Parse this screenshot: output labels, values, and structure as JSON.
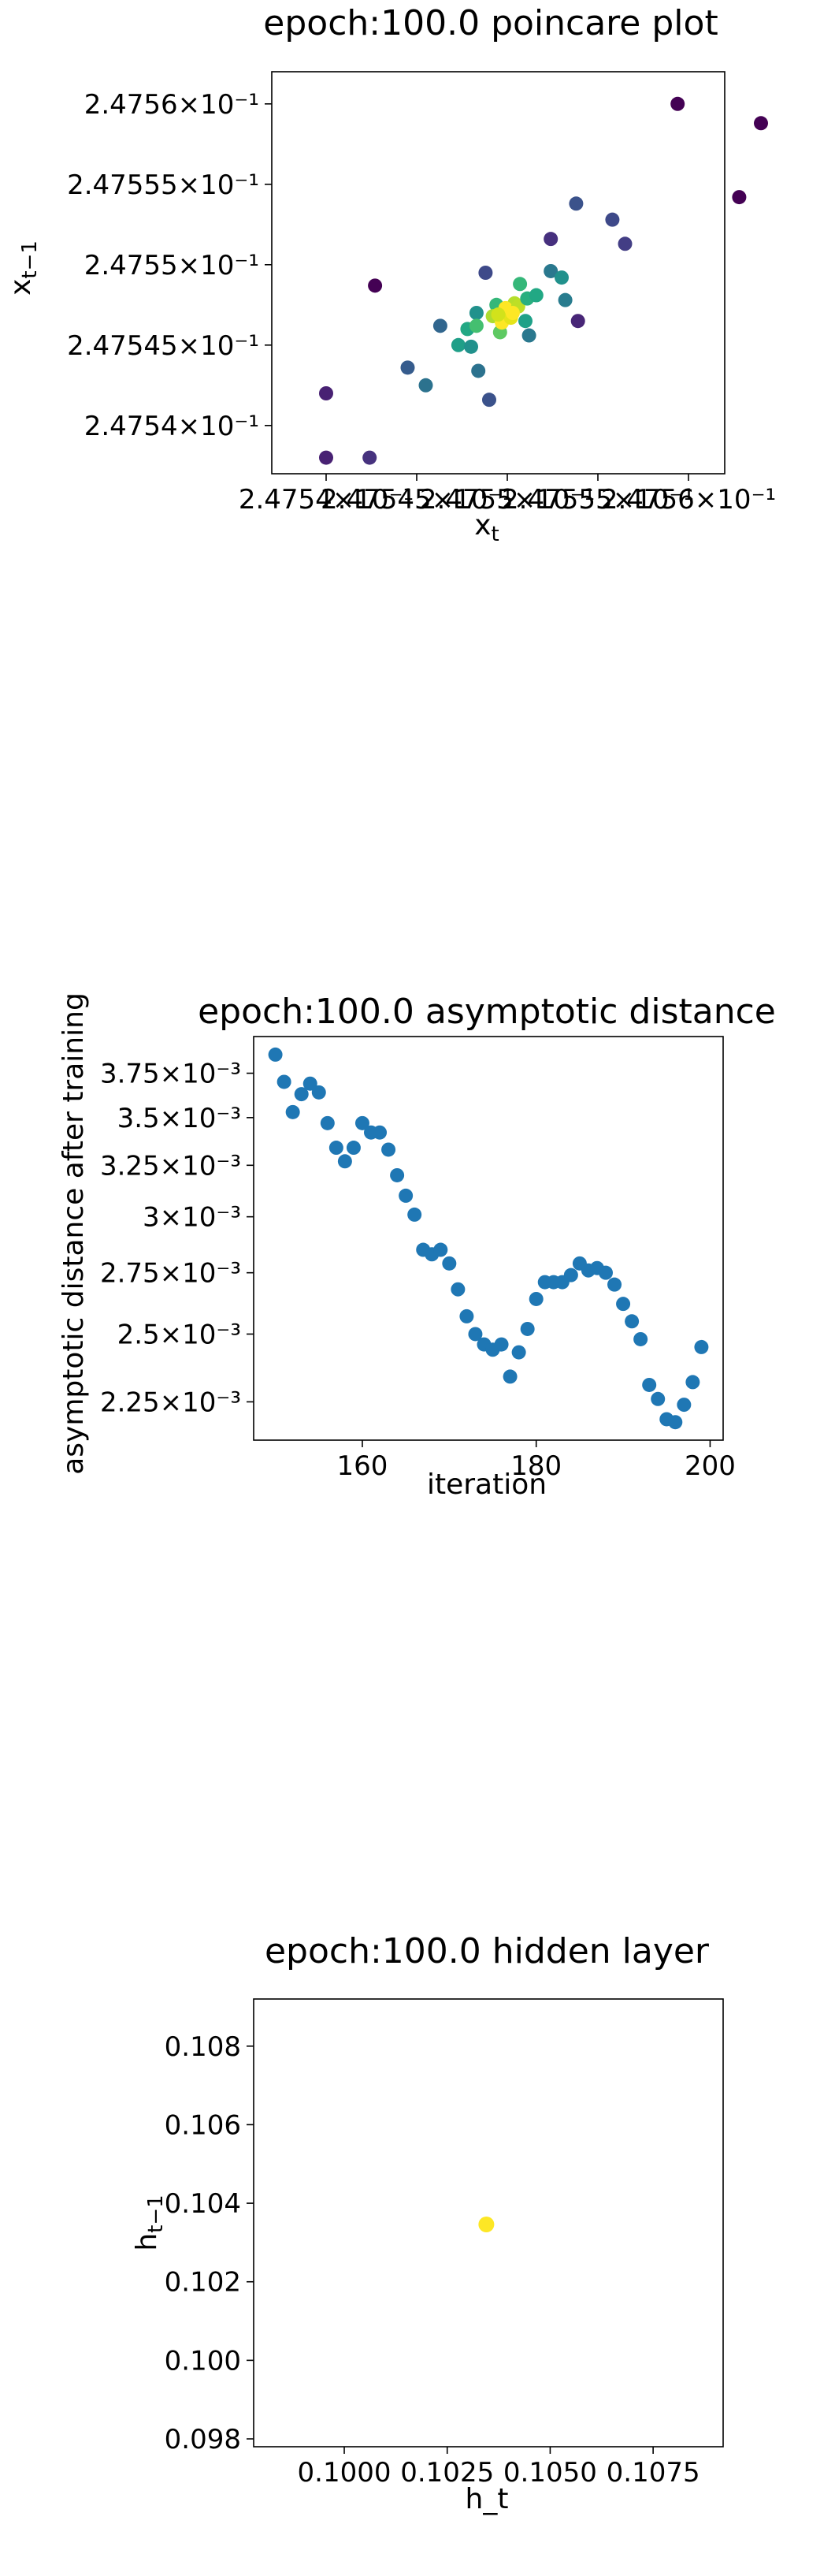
{
  "chart_data": [
    {
      "type": "scatter",
      "title": "epoch:100.0 poincare plot",
      "xlabel": "x",
      "xlabel_sub": "t",
      "ylabel": "x",
      "ylabel_sub": "t−1",
      "xlim": [
        0.247537,
        0.247562
      ],
      "ylim": [
        0.247537,
        0.247562
      ],
      "xticks": [
        {
          "value": 0.24754,
          "label": "2.4754×10⁻¹"
        },
        {
          "value": 0.247545,
          "label": "2.47545×10⁻¹"
        },
        {
          "value": 0.24755,
          "label": "2.4755×10⁻¹"
        },
        {
          "value": 0.247555,
          "label": "2.47555×10⁻¹"
        },
        {
          "value": 0.24756,
          "label": "2.4756×10⁻¹"
        }
      ],
      "yticks": [
        {
          "value": 0.24754,
          "label": "2.4754×10⁻¹"
        },
        {
          "value": 0.247545,
          "label": "2.47545×10⁻¹"
        },
        {
          "value": 0.24755,
          "label": "2.4755×10⁻¹"
        },
        {
          "value": 0.247555,
          "label": "2.47555×10⁻¹"
        },
        {
          "value": 0.24756,
          "label": "2.4756×10⁻¹"
        }
      ],
      "points": [
        {
          "x": 0.24754,
          "y": 0.247538,
          "c": "#482173"
        },
        {
          "x": 0.24754,
          "y": 0.247542,
          "c": "#482173"
        },
        {
          "x": 0.2475424,
          "y": 0.247538,
          "c": "#46327e"
        },
        {
          "x": 0.2475445,
          "y": 0.2475436,
          "c": "#365c8d"
        },
        {
          "x": 0.2475455,
          "y": 0.2475425,
          "c": "#2c728e"
        },
        {
          "x": 0.2475427,
          "y": 0.2475487,
          "c": "#440154"
        },
        {
          "x": 0.2475463,
          "y": 0.2475462,
          "c": "#31668e"
        },
        {
          "x": 0.2475473,
          "y": 0.247545,
          "c": "#1f9f88"
        },
        {
          "x": 0.247548,
          "y": 0.2475449,
          "c": "#21918c"
        },
        {
          "x": 0.2475484,
          "y": 0.2475434,
          "c": "#2c728e"
        },
        {
          "x": 0.247549,
          "y": 0.2475416,
          "c": "#3b528b"
        },
        {
          "x": 0.2475478,
          "y": 0.247546,
          "c": "#22a884"
        },
        {
          "x": 0.2475483,
          "y": 0.247547,
          "c": "#21918c"
        },
        {
          "x": 0.2475488,
          "y": 0.2475495,
          "c": "#3e4989"
        },
        {
          "x": 0.2475494,
          "y": 0.2475475,
          "c": "#35b779"
        },
        {
          "x": 0.2475483,
          "y": 0.2475462,
          "c": "#44bf70"
        },
        {
          "x": 0.2475496,
          "y": 0.2475458,
          "c": "#5ec962"
        },
        {
          "x": 0.2475492,
          "y": 0.2475468,
          "c": "#addc30"
        },
        {
          "x": 0.2475497,
          "y": 0.2475464,
          "c": "#fde725"
        },
        {
          "x": 0.24755,
          "y": 0.2475472,
          "c": "#d8e219"
        },
        {
          "x": 0.2475504,
          "y": 0.2475476,
          "c": "#b5de2b"
        },
        {
          "x": 0.2475499,
          "y": 0.2475473,
          "c": "#fde725"
        },
        {
          "x": 0.2475502,
          "y": 0.2475467,
          "c": "#e5e419"
        },
        {
          "x": 0.2475506,
          "y": 0.2475474,
          "c": "#bddf26"
        },
        {
          "x": 0.2475495,
          "y": 0.2475469,
          "c": "#d2e21b"
        },
        {
          "x": 0.2475503,
          "y": 0.247547,
          "c": "#fde725"
        },
        {
          "x": 0.2475507,
          "y": 0.2475488,
          "c": "#35b779"
        },
        {
          "x": 0.2475511,
          "y": 0.2475479,
          "c": "#29af7f"
        },
        {
          "x": 0.2475516,
          "y": 0.2475481,
          "c": "#22a884"
        },
        {
          "x": 0.247551,
          "y": 0.2475465,
          "c": "#1fa188"
        },
        {
          "x": 0.2475512,
          "y": 0.2475456,
          "c": "#2a788e"
        },
        {
          "x": 0.2475524,
          "y": 0.2475496,
          "c": "#2a788e"
        },
        {
          "x": 0.247553,
          "y": 0.2475492,
          "c": "#21918c"
        },
        {
          "x": 0.2475532,
          "y": 0.2475478,
          "c": "#287c8e"
        },
        {
          "x": 0.2475524,
          "y": 0.2475516,
          "c": "#46307e"
        },
        {
          "x": 0.2475538,
          "y": 0.2475538,
          "c": "#3b528b"
        },
        {
          "x": 0.2475539,
          "y": 0.2475465,
          "c": "#482677"
        },
        {
          "x": 0.2475558,
          "y": 0.2475528,
          "c": "#3e4989"
        },
        {
          "x": 0.2475565,
          "y": 0.2475513,
          "c": "#433e85"
        },
        {
          "x": 0.2475594,
          "y": 0.24756,
          "c": "#440154"
        },
        {
          "x": 0.2475628,
          "y": 0.2475542,
          "c": "#440154"
        },
        {
          "x": 0.247564,
          "y": 0.2475588,
          "c": "#440154"
        }
      ]
    },
    {
      "type": "scatter",
      "title": "epoch:100.0 asymptotic distance",
      "xlabel": "iteration",
      "ylabel": "asymptotic distance after training",
      "yscale": "log",
      "color": "#1f77b4",
      "xlim": [
        147.5,
        201.5
      ],
      "ylim": [
        0.00212,
        0.00397
      ],
      "xticks": [
        {
          "value": 160,
          "label": "160"
        },
        {
          "value": 180,
          "label": "180"
        },
        {
          "value": 200,
          "label": "200"
        }
      ],
      "yticks": [
        {
          "value": 0.00225,
          "label": "2.25×10⁻³"
        },
        {
          "value": 0.0025,
          "label": "2.5×10⁻³"
        },
        {
          "value": 0.00275,
          "label": "2.75×10⁻³"
        },
        {
          "value": 0.003,
          "label": "3×10⁻³"
        },
        {
          "value": 0.00325,
          "label": "3.25×10⁻³"
        },
        {
          "value": 0.0035,
          "label": "3.5×10⁻³"
        },
        {
          "value": 0.00375,
          "label": "3.75×10⁻³"
        }
      ],
      "x": [
        150,
        151,
        152,
        153,
        154,
        155,
        156,
        157,
        158,
        159,
        160,
        161,
        162,
        163,
        164,
        165,
        166,
        167,
        168,
        169,
        170,
        171,
        172,
        173,
        174,
        175,
        176,
        177,
        178,
        179,
        180,
        181,
        182,
        183,
        184,
        185,
        186,
        187,
        188,
        189,
        190,
        191,
        192,
        193,
        194,
        195,
        196,
        197,
        198,
        199
      ],
      "y": [
        0.00386,
        0.0037,
        0.00353,
        0.00363,
        0.00369,
        0.00364,
        0.00347,
        0.00334,
        0.00327,
        0.00334,
        0.00347,
        0.00342,
        0.00342,
        0.00333,
        0.0032,
        0.0031,
        0.00301,
        0.00285,
        0.00283,
        0.00285,
        0.00279,
        0.00268,
        0.00257,
        0.0025,
        0.00246,
        0.00244,
        0.00246,
        0.00234,
        0.00243,
        0.00252,
        0.00264,
        0.00271,
        0.00271,
        0.00271,
        0.00274,
        0.00279,
        0.00276,
        0.00277,
        0.00275,
        0.0027,
        0.00262,
        0.00255,
        0.00248,
        0.00231,
        0.00226,
        0.00219,
        0.00218,
        0.00224,
        0.00232,
        0.00245
      ]
    },
    {
      "type": "scatter",
      "title": "epoch:100.0 hidden layer",
      "xlabel": "h_t",
      "ylabel": "h",
      "ylabel_sub": "t−1",
      "xlim": [
        0.0978,
        0.1092
      ],
      "ylim": [
        0.0978,
        0.1092
      ],
      "xticks": [
        {
          "value": 0.1,
          "label": "0.1000"
        },
        {
          "value": 0.1025,
          "label": "0.1025"
        },
        {
          "value": 0.105,
          "label": "0.1050"
        },
        {
          "value": 0.1075,
          "label": "0.1075"
        }
      ],
      "yticks": [
        {
          "value": 0.098,
          "label": "0.098"
        },
        {
          "value": 0.1,
          "label": "0.100"
        },
        {
          "value": 0.102,
          "label": "0.102"
        },
        {
          "value": 0.104,
          "label": "0.104"
        },
        {
          "value": 0.106,
          "label": "0.106"
        },
        {
          "value": 0.108,
          "label": "0.108"
        }
      ],
      "points": [
        {
          "x": 0.10345,
          "y": 0.10346,
          "c": "#fde725"
        }
      ]
    }
  ]
}
